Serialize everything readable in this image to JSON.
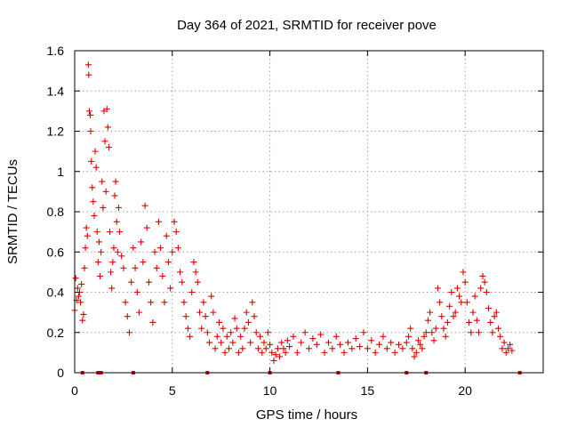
{
  "chart_data": {
    "type": "scatter",
    "title": "Day 364 of 2021, SRMTID for receiver pove",
    "xlabel": "GPS time / hours",
    "ylabel": "SRMTID / TECUs",
    "xlim": [
      0,
      24
    ],
    "ylim": [
      0,
      1.6
    ],
    "xticks": [
      0,
      5,
      10,
      15,
      20
    ],
    "yticks": [
      0,
      0.2,
      0.4,
      0.6,
      0.8,
      1,
      1.2,
      1.4,
      1.6
    ],
    "ytick_labels": [
      "0",
      "0.2",
      "0.4",
      "0.6",
      "0.8",
      "1",
      "1.2",
      "1.4",
      "1.6"
    ],
    "grid": true,
    "marker": "+",
    "color": "#e00000",
    "series": [
      {
        "name": "SRMTID",
        "points": [
          [
            0.0,
            0.31
          ],
          [
            0.05,
            0.47
          ],
          [
            0.1,
            0.36
          ],
          [
            0.15,
            0.42
          ],
          [
            0.2,
            0.38
          ],
          [
            0.25,
            0.4
          ],
          [
            0.3,
            0.35
          ],
          [
            0.35,
            0.44
          ],
          [
            0.4,
            0.26
          ],
          [
            0.45,
            0.29
          ],
          [
            0.5,
            0.52
          ],
          [
            0.55,
            0.62
          ],
          [
            0.6,
            0.72
          ],
          [
            0.65,
            0.68
          ],
          [
            0.7,
            1.53
          ],
          [
            0.72,
            1.48
          ],
          [
            0.75,
            1.3
          ],
          [
            0.8,
            1.28
          ],
          [
            0.82,
            1.2
          ],
          [
            0.85,
            1.05
          ],
          [
            0.9,
            0.92
          ],
          [
            0.95,
            0.85
          ],
          [
            1.0,
            0.78
          ],
          [
            1.05,
            1.1
          ],
          [
            1.1,
            1.02
          ],
          [
            1.15,
            0.7
          ],
          [
            1.2,
            0.55
          ],
          [
            1.25,
            0.65
          ],
          [
            1.3,
            0.48
          ],
          [
            1.35,
            0.6
          ],
          [
            1.4,
            0.95
          ],
          [
            1.45,
            0.82
          ],
          [
            1.5,
            1.3
          ],
          [
            1.55,
            1.15
          ],
          [
            1.6,
            0.9
          ],
          [
            1.65,
            1.31
          ],
          [
            1.7,
            1.22
          ],
          [
            1.75,
            1.12
          ],
          [
            1.8,
            0.7
          ],
          [
            1.85,
            0.5
          ],
          [
            1.9,
            0.42
          ],
          [
            1.95,
            0.55
          ],
          [
            2.0,
            0.62
          ],
          [
            2.05,
            0.88
          ],
          [
            2.1,
            0.95
          ],
          [
            2.15,
            0.75
          ],
          [
            2.2,
            0.6
          ],
          [
            2.25,
            0.82
          ],
          [
            2.3,
            0.7
          ],
          [
            2.4,
            0.58
          ],
          [
            2.5,
            0.52
          ],
          [
            2.6,
            0.35
          ],
          [
            2.7,
            0.28
          ],
          [
            2.8,
            0.2
          ],
          [
            2.9,
            0.45
          ],
          [
            3.0,
            0.62
          ],
          [
            3.1,
            0.52
          ],
          [
            3.2,
            0.4
          ],
          [
            3.3,
            0.3
          ],
          [
            3.4,
            0.65
          ],
          [
            3.5,
            0.55
          ],
          [
            3.6,
            0.83
          ],
          [
            3.7,
            0.72
          ],
          [
            3.8,
            0.45
          ],
          [
            3.9,
            0.35
          ],
          [
            4.0,
            0.25
          ],
          [
            4.1,
            0.6
          ],
          [
            4.2,
            0.52
          ],
          [
            4.3,
            0.75
          ],
          [
            4.4,
            0.62
          ],
          [
            4.5,
            0.48
          ],
          [
            4.6,
            0.35
          ],
          [
            4.7,
            0.68
          ],
          [
            4.8,
            0.55
          ],
          [
            4.9,
            0.42
          ],
          [
            5.0,
            0.6
          ],
          [
            5.1,
            0.75
          ],
          [
            5.2,
            0.7
          ],
          [
            5.3,
            0.62
          ],
          [
            5.4,
            0.5
          ],
          [
            5.5,
            0.45
          ],
          [
            5.6,
            0.35
          ],
          [
            5.7,
            0.28
          ],
          [
            5.8,
            0.22
          ],
          [
            5.9,
            0.18
          ],
          [
            6.0,
            0.4
          ],
          [
            6.1,
            0.55
          ],
          [
            6.2,
            0.5
          ],
          [
            6.3,
            0.45
          ],
          [
            6.4,
            0.3
          ],
          [
            6.5,
            0.22
          ],
          [
            6.6,
            0.35
          ],
          [
            6.7,
            0.28
          ],
          [
            6.8,
            0.2
          ],
          [
            6.9,
            0.15
          ],
          [
            7.0,
            0.38
          ],
          [
            7.1,
            0.3
          ],
          [
            7.2,
            0.12
          ],
          [
            7.3,
            0.18
          ],
          [
            7.4,
            0.25
          ],
          [
            7.5,
            0.15
          ],
          [
            7.6,
            0.22
          ],
          [
            7.7,
            0.1
          ],
          [
            7.8,
            0.18
          ],
          [
            7.9,
            0.12
          ],
          [
            8.0,
            0.2
          ],
          [
            8.1,
            0.15
          ],
          [
            8.2,
            0.27
          ],
          [
            8.3,
            0.22
          ],
          [
            8.4,
            0.1
          ],
          [
            8.5,
            0.18
          ],
          [
            8.6,
            0.12
          ],
          [
            8.7,
            0.22
          ],
          [
            8.8,
            0.3
          ],
          [
            8.9,
            0.25
          ],
          [
            9.0,
            0.15
          ],
          [
            9.1,
            0.35
          ],
          [
            9.2,
            0.28
          ],
          [
            9.3,
            0.2
          ],
          [
            9.4,
            0.12
          ],
          [
            9.5,
            0.18
          ],
          [
            9.6,
            0.1
          ],
          [
            9.7,
            0.15
          ],
          [
            9.8,
            0.12
          ],
          [
            9.9,
            0.2
          ],
          [
            10.0,
            0.14
          ],
          [
            10.1,
            0.1
          ],
          [
            10.2,
            0.06
          ],
          [
            10.3,
            0.09
          ],
          [
            10.4,
            0.12
          ],
          [
            10.5,
            0.08
          ],
          [
            10.6,
            0.15
          ],
          [
            10.7,
            0.12
          ],
          [
            10.8,
            0.1
          ],
          [
            10.9,
            0.16
          ],
          [
            11.0,
            0.13
          ],
          [
            11.2,
            0.18
          ],
          [
            11.4,
            0.1
          ],
          [
            11.6,
            0.15
          ],
          [
            11.8,
            0.2
          ],
          [
            12.0,
            0.12
          ],
          [
            12.2,
            0.17
          ],
          [
            12.4,
            0.14
          ],
          [
            12.6,
            0.19
          ],
          [
            12.8,
            0.1
          ],
          [
            13.0,
            0.15
          ],
          [
            13.2,
            0.12
          ],
          [
            13.4,
            0.18
          ],
          [
            13.6,
            0.14
          ],
          [
            13.8,
            0.1
          ],
          [
            14.0,
            0.15
          ],
          [
            14.2,
            0.12
          ],
          [
            14.4,
            0.17
          ],
          [
            14.6,
            0.13
          ],
          [
            14.8,
            0.2
          ],
          [
            15.0,
            0.12
          ],
          [
            15.2,
            0.16
          ],
          [
            15.4,
            0.1
          ],
          [
            15.6,
            0.14
          ],
          [
            15.8,
            0.18
          ],
          [
            16.0,
            0.12
          ],
          [
            16.2,
            0.15
          ],
          [
            16.4,
            0.1
          ],
          [
            16.6,
            0.14
          ],
          [
            16.8,
            0.12
          ],
          [
            17.0,
            0.15
          ],
          [
            17.1,
            0.18
          ],
          [
            17.2,
            0.22
          ],
          [
            17.3,
            0.12
          ],
          [
            17.4,
            0.08
          ],
          [
            17.5,
            0.1
          ],
          [
            17.6,
            0.16
          ],
          [
            17.7,
            0.14
          ],
          [
            17.8,
            0.12
          ],
          [
            17.9,
            0.18
          ],
          [
            18.0,
            0.2
          ],
          [
            18.1,
            0.26
          ],
          [
            18.2,
            0.3
          ],
          [
            18.3,
            0.2
          ],
          [
            18.4,
            0.16
          ],
          [
            18.5,
            0.22
          ],
          [
            18.6,
            0.42
          ],
          [
            18.7,
            0.35
          ],
          [
            18.8,
            0.28
          ],
          [
            18.9,
            0.22
          ],
          [
            19.0,
            0.18
          ],
          [
            19.1,
            0.25
          ],
          [
            19.2,
            0.33
          ],
          [
            19.3,
            0.4
          ],
          [
            19.4,
            0.28
          ],
          [
            19.5,
            0.3
          ],
          [
            19.6,
            0.42
          ],
          [
            19.7,
            0.38
          ],
          [
            19.8,
            0.35
          ],
          [
            19.9,
            0.5
          ],
          [
            20.0,
            0.45
          ],
          [
            20.1,
            0.35
          ],
          [
            20.2,
            0.25
          ],
          [
            20.3,
            0.2
          ],
          [
            20.4,
            0.3
          ],
          [
            20.5,
            0.38
          ],
          [
            20.6,
            0.26
          ],
          [
            20.7,
            0.2
          ],
          [
            20.8,
            0.42
          ],
          [
            20.9,
            0.48
          ],
          [
            21.0,
            0.45
          ],
          [
            21.1,
            0.4
          ],
          [
            21.2,
            0.32
          ],
          [
            21.3,
            0.25
          ],
          [
            21.4,
            0.2
          ],
          [
            21.5,
            0.28
          ],
          [
            21.6,
            0.3
          ],
          [
            21.7,
            0.22
          ],
          [
            21.8,
            0.18
          ],
          [
            21.9,
            0.12
          ],
          [
            22.0,
            0.15
          ],
          [
            22.1,
            0.1
          ],
          [
            22.2,
            0.12
          ],
          [
            22.3,
            0.14
          ],
          [
            22.4,
            0.11
          ]
        ]
      }
    ],
    "gap_markers_x": [
      0.4,
      1.2,
      1.35,
      3.0,
      6.8,
      10.0,
      13.5,
      17.0,
      18.0,
      22.8
    ]
  }
}
